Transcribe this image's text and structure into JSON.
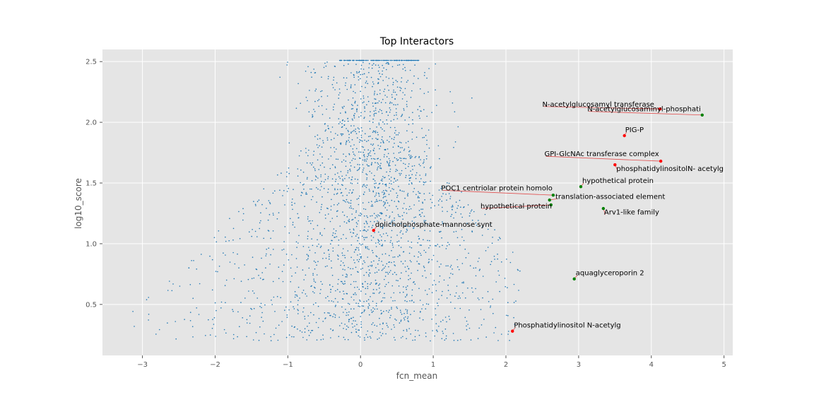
{
  "chart_data": {
    "type": "scatter",
    "title": "Top Interactors",
    "xlabel": "fcn_mean",
    "ylabel": "log10_score",
    "xlim": [
      -3.55,
      5.12
    ],
    "ylim": [
      0.08,
      2.6
    ],
    "xticks": [
      -3,
      -2,
      -1,
      0,
      1,
      2,
      3,
      4,
      5
    ],
    "xtick_labels": [
      "−3",
      "−2",
      "−1",
      "0",
      "1",
      "2",
      "3",
      "4",
      "5"
    ],
    "yticks": [
      0.5,
      1.0,
      1.5,
      2.0,
      2.5
    ],
    "ytick_labels": [
      "0.5",
      "1.0",
      "1.5",
      "2.0",
      "2.5"
    ],
    "grid": true,
    "background_color": "#e5e5e5",
    "grid_color": "#ffffff",
    "background_points_color": "#1f77b4",
    "background_points_count": 2400,
    "highlight_colors": {
      "red": "#ff0000",
      "green": "#008000"
    },
    "annotations": [
      {
        "label": "N-acetylglucosamyl transferase",
        "x": 4.12,
        "y": 2.11,
        "color": "red",
        "text_x": 2.5,
        "text_y": 2.13
      },
      {
        "label": "N-acetylglucosaminyl-phosphati",
        "x": 4.7,
        "y": 2.06,
        "color": "green",
        "text_x": 3.12,
        "text_y": 2.09
      },
      {
        "label": "PIG-P",
        "x": 3.63,
        "y": 1.89,
        "color": "red",
        "text_x": 3.64,
        "text_y": 1.92
      },
      {
        "label": "GPI-GlcNAc transferase complex",
        "x": 4.13,
        "y": 1.68,
        "color": "red",
        "text_x": 2.53,
        "text_y": 1.72
      },
      {
        "label": "phosphatidylinositolN- acetylg",
        "x": 3.5,
        "y": 1.65,
        "color": "red",
        "text_x": 3.52,
        "text_y": 1.6
      },
      {
        "label": "hypothetical protein",
        "x": 3.03,
        "y": 1.47,
        "color": "green",
        "text_x": 3.05,
        "text_y": 1.5
      },
      {
        "label": "POC1 centriolar protein homolo",
        "x": 2.65,
        "y": 1.4,
        "color": "green",
        "text_x": 1.11,
        "text_y": 1.44
      },
      {
        "label": "translation-associated element",
        "x": 2.6,
        "y": 1.36,
        "color": "green",
        "text_x": 2.68,
        "text_y": 1.37
      },
      {
        "label": "hypothetical protein",
        "x": 2.62,
        "y": 1.32,
        "color": "green",
        "text_x": 1.65,
        "text_y": 1.29
      },
      {
        "label": "Arv1-like family",
        "x": 3.34,
        "y": 1.29,
        "color": "green",
        "text_x": 3.35,
        "text_y": 1.24
      },
      {
        "label": "dolicholphosphate-mannose synt",
        "x": 0.18,
        "y": 1.11,
        "color": "red",
        "text_x": 0.2,
        "text_y": 1.14
      },
      {
        "label": "aquaglyceroporin 2",
        "x": 2.94,
        "y": 0.71,
        "color": "green",
        "text_x": 2.96,
        "text_y": 0.74
      },
      {
        "label": "Phosphatidylinositol N-acetylg",
        "x": 2.09,
        "y": 0.28,
        "color": "red",
        "text_x": 2.11,
        "text_y": 0.31
      }
    ]
  }
}
